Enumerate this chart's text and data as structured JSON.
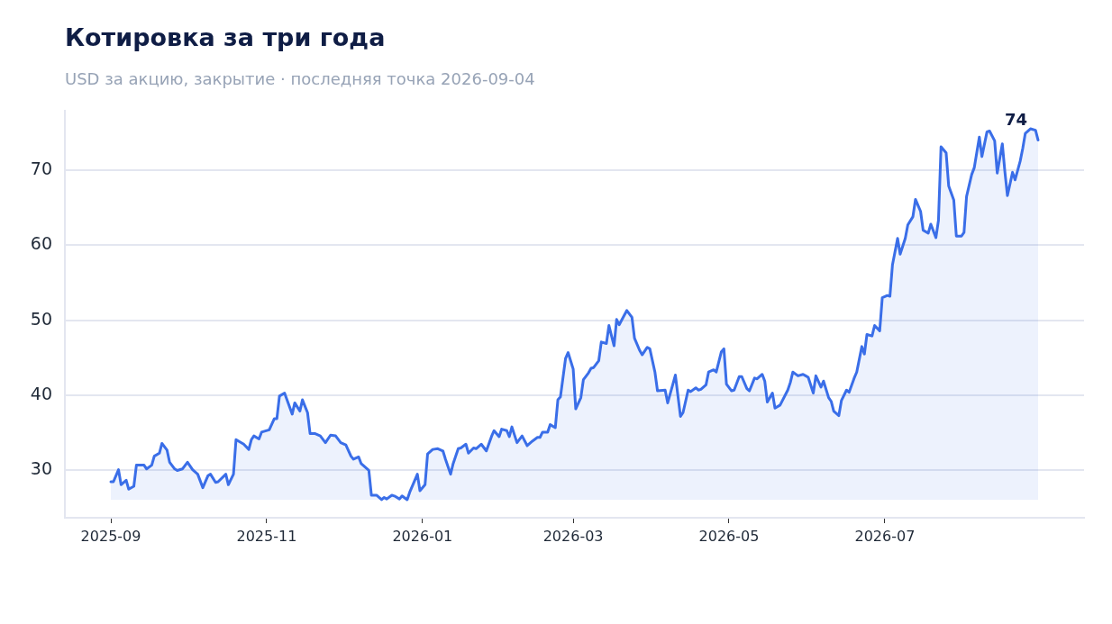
{
  "chart_data": {
    "type": "area",
    "title": "Котировка за три года",
    "subtitle": "USD за акцию, закрытие · последняя точка 2026-09-04",
    "x": [
      "2025-09-01",
      "2025-09-02",
      "2025-09-04",
      "2025-09-05",
      "2025-09-07",
      "2025-09-08",
      "2025-09-10",
      "2025-09-11",
      "2025-09-14",
      "2025-09-15",
      "2025-09-17",
      "2025-09-18",
      "2025-09-20",
      "2025-09-21",
      "2025-09-23",
      "2025-09-24",
      "2025-09-26",
      "2025-09-27",
      "2025-09-29",
      "2025-10-01",
      "2025-10-03",
      "2025-10-05",
      "2025-10-07",
      "2025-10-09",
      "2025-10-10",
      "2025-10-12",
      "2025-10-13",
      "2025-10-16",
      "2025-10-17",
      "2025-10-19",
      "2025-10-20",
      "2025-10-23",
      "2025-10-25",
      "2025-10-26",
      "2025-10-27",
      "2025-10-29",
      "2025-10-30",
      "2025-11-02",
      "2025-11-04",
      "2025-11-05",
      "2025-11-06",
      "2025-11-08",
      "2025-11-11",
      "2025-11-12",
      "2025-11-14",
      "2025-11-15",
      "2025-11-17",
      "2025-11-18",
      "2025-11-20",
      "2025-11-22",
      "2025-11-24",
      "2025-11-26",
      "2025-11-28",
      "2025-11-30",
      "2025-12-02",
      "2025-12-04",
      "2025-12-05",
      "2025-12-07",
      "2025-12-08",
      "2025-12-11",
      "2025-12-12",
      "2025-12-14",
      "2025-12-16",
      "2025-12-17",
      "2025-12-18",
      "2025-12-20",
      "2025-12-21",
      "2025-12-23",
      "2025-12-24",
      "2025-12-26",
      "2025-12-27",
      "2025-12-30",
      "2025-12-31",
      "2026-01-02",
      "2026-01-03",
      "2026-01-05",
      "2026-01-07",
      "2026-01-09",
      "2026-01-10",
      "2026-01-12",
      "2026-01-13",
      "2026-01-15",
      "2026-01-16",
      "2026-01-18",
      "2026-01-19",
      "2026-01-21",
      "2026-01-22",
      "2026-01-24",
      "2026-01-26",
      "2026-01-28",
      "2026-01-29",
      "2026-01-31",
      "2026-02-01",
      "2026-02-03",
      "2026-02-04",
      "2026-02-05",
      "2026-02-07",
      "2026-02-09",
      "2026-02-11",
      "2026-02-13",
      "2026-02-15",
      "2026-02-16",
      "2026-02-17",
      "2026-02-19",
      "2026-02-20",
      "2026-02-22",
      "2026-02-23",
      "2026-02-24",
      "2026-02-26",
      "2026-02-27",
      "2026-03-01",
      "2026-03-02",
      "2026-03-04",
      "2026-03-05",
      "2026-03-07",
      "2026-03-08",
      "2026-03-09",
      "2026-03-11",
      "2026-03-12",
      "2026-03-14",
      "2026-03-15",
      "2026-03-17",
      "2026-03-18",
      "2026-03-19",
      "2026-03-22",
      "2026-03-24",
      "2026-03-25",
      "2026-03-27",
      "2026-03-28",
      "2026-03-30",
      "2026-03-31",
      "2026-04-02",
      "2026-04-03",
      "2026-04-06",
      "2026-04-07",
      "2026-04-10",
      "2026-04-12",
      "2026-04-13",
      "2026-04-15",
      "2026-04-16",
      "2026-04-18",
      "2026-04-19",
      "2026-04-20",
      "2026-04-22",
      "2026-04-23",
      "2026-04-25",
      "2026-04-26",
      "2026-04-28",
      "2026-04-29",
      "2026-04-30",
      "2026-05-02",
      "2026-05-03",
      "2026-05-05",
      "2026-05-06",
      "2026-05-08",
      "2026-05-09",
      "2026-05-11",
      "2026-05-12",
      "2026-05-14",
      "2026-05-15",
      "2026-05-16",
      "2026-05-18",
      "2026-05-19",
      "2026-05-21",
      "2026-05-24",
      "2026-05-25",
      "2026-05-26",
      "2026-05-28",
      "2026-05-30",
      "2026-05-31",
      "2026-06-01",
      "2026-06-03",
      "2026-06-04",
      "2026-06-06",
      "2026-06-07",
      "2026-06-09",
      "2026-06-10",
      "2026-06-11",
      "2026-06-13",
      "2026-06-14",
      "2026-06-16",
      "2026-06-17",
      "2026-06-19",
      "2026-06-20",
      "2026-06-22",
      "2026-06-23",
      "2026-06-24",
      "2026-06-26",
      "2026-06-27",
      "2026-06-29",
      "2026-06-30",
      "2026-07-02",
      "2026-07-03",
      "2026-07-04",
      "2026-07-06",
      "2026-07-07",
      "2026-07-09",
      "2026-07-10",
      "2026-07-12",
      "2026-07-13",
      "2026-07-15",
      "2026-07-16",
      "2026-07-18",
      "2026-07-19",
      "2026-07-21",
      "2026-07-22",
      "2026-07-23",
      "2026-07-25",
      "2026-07-26",
      "2026-07-28",
      "2026-07-29",
      "2026-07-31",
      "2026-08-01",
      "2026-08-02",
      "2026-08-04",
      "2026-08-05",
      "2026-08-07",
      "2026-08-08",
      "2026-08-10",
      "2026-08-11",
      "2026-08-13",
      "2026-08-14",
      "2026-08-16",
      "2026-08-17",
      "2026-08-18",
      "2026-08-20",
      "2026-08-21",
      "2026-08-23",
      "2026-08-24",
      "2026-08-25",
      "2026-08-27",
      "2026-08-29",
      "2026-08-30"
    ],
    "series": [
      {
        "color": "#3a6ee8",
        "values": [
          28.5,
          28.5,
          30.1,
          28.1,
          28.7,
          27.5,
          27.9,
          30.7,
          30.7,
          30.2,
          30.7,
          31.9,
          32.3,
          33.6,
          32.7,
          31.1,
          30.2,
          30.0,
          30.2,
          31.1,
          30.1,
          29.5,
          27.7,
          29.3,
          29.5,
          28.4,
          28.5,
          29.5,
          28.1,
          29.5,
          34.1,
          33.5,
          32.8,
          34.1,
          34.6,
          34.2,
          35.1,
          35.4,
          36.9,
          36.9,
          39.9,
          40.3,
          37.5,
          39.0,
          37.9,
          39.4,
          37.7,
          34.9,
          34.9,
          34.6,
          33.7,
          34.7,
          34.6,
          33.7,
          33.4,
          31.9,
          31.5,
          31.8,
          30.9,
          30.0,
          26.7,
          26.7,
          26.1,
          26.4,
          26.2,
          26.7,
          26.6,
          26.2,
          26.6,
          26.1,
          27.1,
          29.5,
          27.3,
          28.1,
          32.2,
          32.8,
          32.9,
          32.6,
          31.5,
          29.5,
          30.9,
          32.9,
          33.0,
          33.5,
          32.3,
          33.0,
          32.9,
          33.5,
          32.6,
          34.5,
          35.3,
          34.5,
          35.5,
          35.3,
          34.5,
          35.8,
          33.7,
          34.6,
          33.3,
          33.9,
          34.4,
          34.4,
          35.1,
          35.1,
          36.1,
          35.7,
          39.4,
          39.8,
          44.9,
          45.7,
          43.5,
          38.2,
          39.7,
          42.1,
          43.0,
          43.6,
          43.7,
          44.6,
          47.1,
          46.9,
          49.3,
          46.6,
          50.1,
          49.4,
          51.3,
          50.4,
          47.6,
          46.0,
          45.4,
          46.4,
          46.2,
          43.1,
          40.6,
          40.7,
          39.0,
          42.7,
          37.2,
          37.7,
          40.7,
          40.5,
          41.0,
          40.7,
          40.8,
          41.4,
          43.1,
          43.4,
          43.1,
          45.8,
          46.2,
          41.5,
          40.6,
          40.7,
          42.5,
          42.5,
          40.9,
          40.6,
          42.3,
          42.2,
          42.8,
          41.9,
          39.1,
          40.3,
          38.3,
          38.7,
          40.7,
          41.7,
          43.1,
          42.6,
          42.8,
          42.6,
          42.4,
          40.3,
          42.6,
          41.1,
          41.9,
          39.7,
          39.2,
          37.9,
          37.3,
          39.3,
          40.7,
          40.4,
          42.3,
          43.1,
          46.5,
          45.5,
          48.1,
          47.9,
          49.3,
          48.6,
          53.0,
          53.3,
          53.2,
          57.4,
          60.9,
          58.8,
          60.9,
          62.7,
          63.8,
          66.1,
          64.5,
          62.0,
          61.6,
          62.8,
          61.0,
          63.3,
          73.1,
          72.3,
          67.9,
          66.0,
          61.2,
          61.2,
          61.7,
          66.5,
          69.4,
          70.3,
          74.4,
          71.8,
          75.1,
          75.2,
          73.9,
          69.6,
          73.5,
          69.8,
          66.6,
          69.7,
          68.7,
          71.2,
          72.9,
          74.9,
          75.5,
          75.3,
          74
        ]
      }
    ],
    "xlim": [
      "2025-08-14",
      "2026-09-17"
    ],
    "xticks": [
      "2025-09",
      "2025-11",
      "2026-01",
      "2026-03",
      "2026-05",
      "2026-07"
    ],
    "ylim": [
      23.7,
      77.9
    ],
    "yticks": [
      30,
      40,
      50,
      60,
      70
    ],
    "grid": "y",
    "annotations": [
      {
        "text": "74",
        "x": "2026-08-30",
        "y": 74
      }
    ]
  }
}
